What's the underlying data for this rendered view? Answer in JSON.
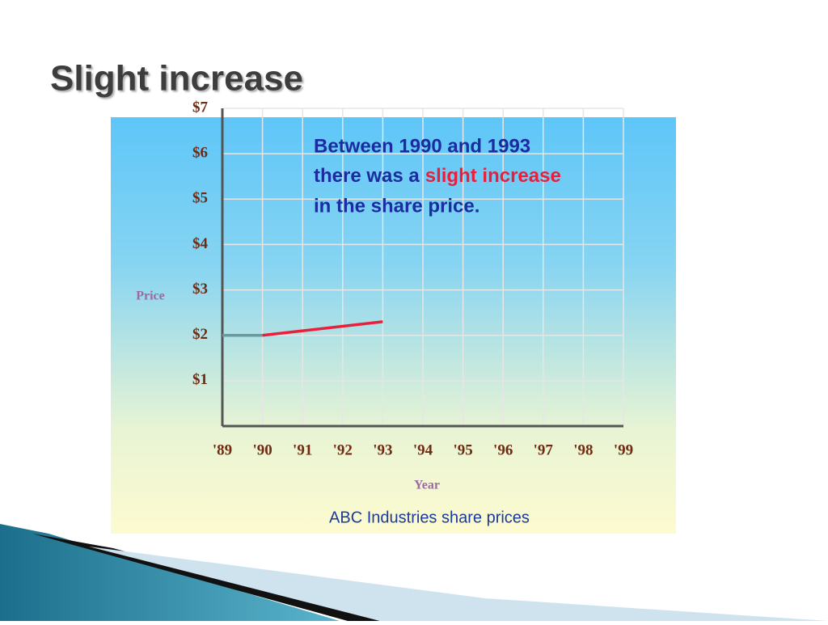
{
  "title": "Slight increase",
  "chart_data": {
    "type": "line",
    "annotation": {
      "line1": "Between 1990 and 1993",
      "line2": "there was a",
      "highlight": "slight increase",
      "line3": "in the share price."
    },
    "caption": "ABC Industries share prices",
    "x_label": "Year",
    "y_label": "Price",
    "categories": [
      "'89",
      "'90",
      "'91",
      "'92",
      "'93",
      "'94",
      "'95",
      "'96",
      "'97",
      "'98",
      "'99"
    ],
    "series": [
      {
        "color": "#6a9aa2",
        "values": [
          2,
          2,
          null,
          null,
          null,
          null,
          null,
          null,
          null,
          null,
          null
        ]
      },
      {
        "color": "#e8203c",
        "values": [
          null,
          2,
          2.1,
          2.2,
          2.3,
          null,
          null,
          null,
          null,
          null,
          null
        ]
      }
    ],
    "ylim": [
      0,
      7
    ],
    "yticks": [
      {
        "value": 1,
        "label": "$1"
      },
      {
        "value": 2,
        "label": "$2"
      },
      {
        "value": 3,
        "label": "$3"
      },
      {
        "value": 4,
        "label": "$4"
      },
      {
        "value": 5,
        "label": "$5"
      },
      {
        "value": 6,
        "label": "$6"
      },
      {
        "value": 7,
        "label": "$7"
      }
    ],
    "grid": true
  }
}
